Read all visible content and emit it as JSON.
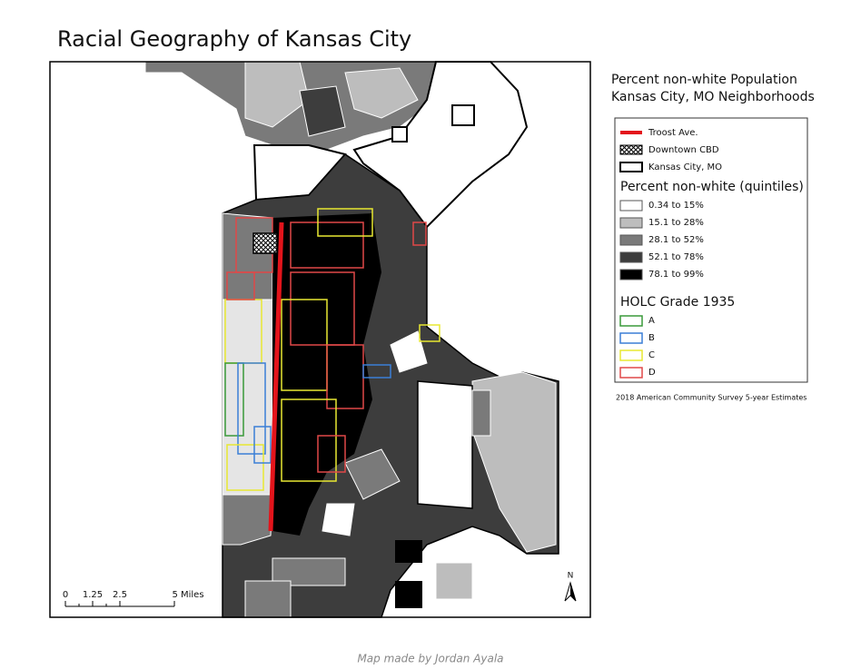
{
  "title": "Racial Geography of Kansas City",
  "map": {
    "scale_bar": [
      "0",
      "1.25",
      "2.5",
      "5 Miles"
    ],
    "north": "N"
  },
  "legend": {
    "title_lines": [
      "Percent non-white Population",
      "Kansas City, MO Neighborhoods"
    ],
    "layers": [
      {
        "label": "Troost Ave.",
        "color": "#e3141b",
        "kind": "line"
      },
      {
        "label": "Downtown CBD",
        "color": "#000000",
        "kind": "hatch"
      },
      {
        "label": "Kansas City, MO",
        "color": "#000000",
        "kind": "outline"
      }
    ],
    "quintiles": {
      "title": "Percent non-white (quintiles)",
      "items": [
        {
          "label": "0.34 to 15%",
          "color": "#ffffff"
        },
        {
          "label": "15.1 to 28%",
          "color": "#bdbdbd"
        },
        {
          "label": "28.1 to 52%",
          "color": "#7a7a7a"
        },
        {
          "label": "52.1 to 78%",
          "color": "#3d3d3d"
        },
        {
          "label": "78.1 to 99%",
          "color": "#000000"
        }
      ]
    },
    "holc": {
      "title": "HOLC Grade 1935",
      "items": [
        {
          "label": "A",
          "color": "#3a9a3a"
        },
        {
          "label": "B",
          "color": "#3b7fd6"
        },
        {
          "label": "C",
          "color": "#e8e832"
        },
        {
          "label": "D",
          "color": "#e04848"
        }
      ]
    }
  },
  "source": "2018 American Community Survey 5-year Estimates",
  "caption": "Map made by Jordan Ayala"
}
